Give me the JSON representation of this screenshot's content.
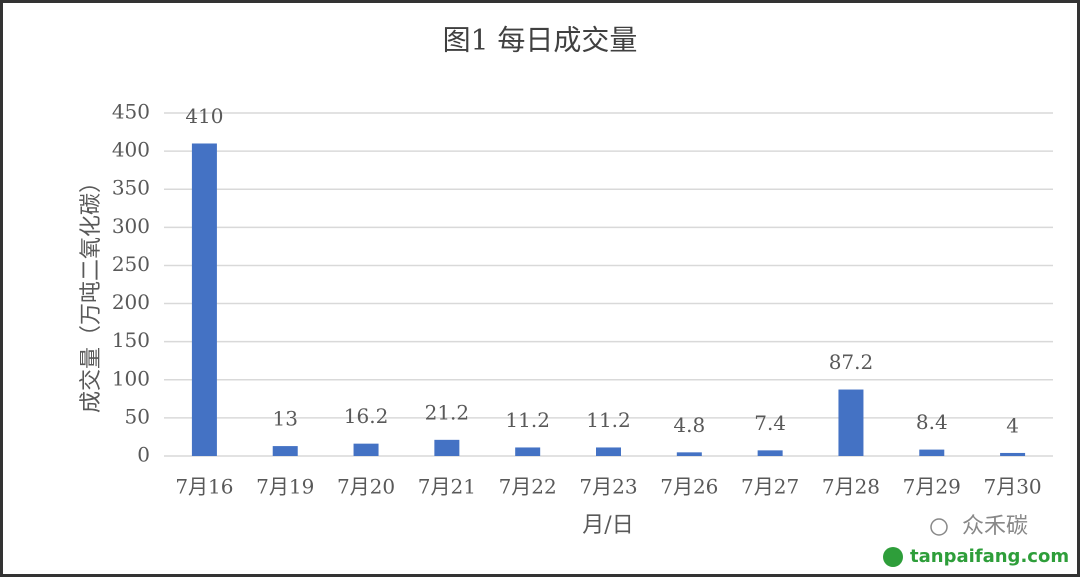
{
  "chart_data": {
    "type": "bar",
    "title": "图1 每日成交量",
    "y_label": "成交量（万吨二氧化碳）",
    "x_label": "月/日",
    "categories": [
      "7月16",
      "7月19",
      "7月20",
      "7月21",
      "7月22",
      "7月23",
      "7月26",
      "7月27",
      "7月28",
      "7月29",
      "7月30"
    ],
    "values": [
      410,
      13,
      16.2,
      21.2,
      11.2,
      11.2,
      4.8,
      7.4,
      87.2,
      8.4,
      4
    ],
    "color": "#4472c4",
    "data_labels": true,
    "ylim": [
      0,
      450
    ],
    "yticks": [
      0,
      50,
      100,
      150,
      200,
      250,
      300,
      350,
      400,
      450
    ],
    "grid": true
  },
  "watermark": {
    "account": "众禾碳",
    "site": "tanpaifang.com"
  }
}
